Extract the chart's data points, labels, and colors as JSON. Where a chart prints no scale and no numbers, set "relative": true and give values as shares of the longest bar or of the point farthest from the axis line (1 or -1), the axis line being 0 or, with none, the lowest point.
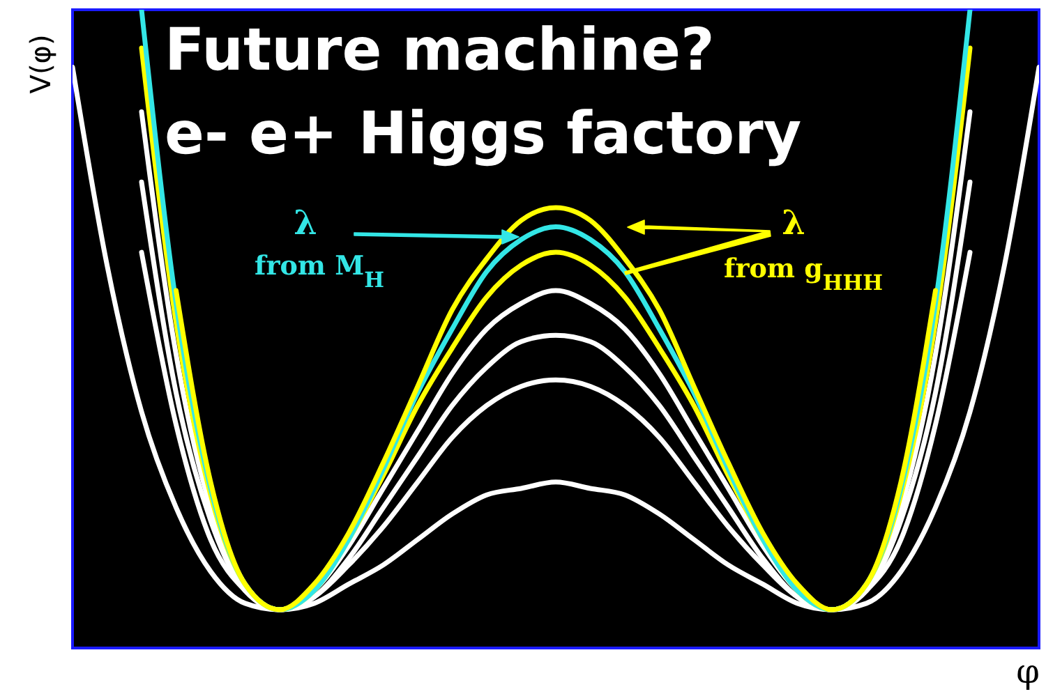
{
  "chart_data": {
    "type": "line",
    "relative": true,
    "title": "Future machine?",
    "subtitle": "e- e+ Higgs factory",
    "xlabel": "φ",
    "ylabel": "V(φ)",
    "categories": [
      null,
      null,
      null,
      null,
      null,
      null,
      null,
      null,
      null,
      null,
      null,
      null,
      null,
      null,
      null,
      null,
      null,
      null,
      null,
      null,
      null,
      null,
      null,
      null,
      null,
      null,
      null,
      null,
      null
    ],
    "series": [
      {
        "color": "#ffffff",
        "values": [
          0.91,
          0.6,
          0.37,
          0.22,
          0.12,
          0.07,
          0.06,
          0.07,
          0.1,
          0.13,
          0.17,
          0.21,
          0.24,
          0.25,
          0.26,
          0.25,
          0.24,
          0.21,
          0.17,
          0.13,
          0.1,
          0.07,
          0.06,
          0.07,
          0.12,
          0.22,
          0.37,
          0.6,
          0.91
        ]
      },
      {
        "color": "#ffffff",
        "values": [
          null,
          null,
          0.62,
          0.35,
          0.17,
          0.09,
          0.06,
          0.08,
          0.13,
          0.19,
          0.26,
          0.33,
          0.38,
          0.41,
          0.42,
          0.41,
          0.38,
          0.33,
          0.26,
          0.19,
          0.13,
          0.08,
          0.06,
          0.09,
          0.17,
          0.35,
          0.62,
          null,
          null
        ]
      },
      {
        "color": "#ffffff",
        "values": [
          null,
          null,
          0.73,
          0.4,
          0.2,
          0.09,
          0.06,
          0.08,
          0.14,
          0.22,
          0.3,
          0.38,
          0.44,
          0.48,
          0.49,
          0.48,
          0.44,
          0.38,
          0.3,
          0.22,
          0.14,
          0.08,
          0.06,
          0.09,
          0.2,
          0.4,
          0.73,
          null,
          null
        ]
      },
      {
        "color": "#ffffff",
        "values": [
          null,
          null,
          0.84,
          0.46,
          0.22,
          0.1,
          0.06,
          0.09,
          0.16,
          0.25,
          0.34,
          0.43,
          0.5,
          0.54,
          0.56,
          0.54,
          0.5,
          0.43,
          0.34,
          0.25,
          0.16,
          0.09,
          0.06,
          0.1,
          0.22,
          0.46,
          0.84,
          null,
          null
        ]
      },
      {
        "color": "#ffff00",
        "values": [
          null,
          null,
          0.94,
          0.51,
          0.24,
          0.1,
          0.06,
          0.09,
          0.17,
          0.27,
          0.38,
          0.47,
          0.55,
          0.6,
          0.62,
          0.6,
          0.55,
          0.47,
          0.38,
          0.27,
          0.17,
          0.09,
          0.06,
          0.1,
          0.24,
          0.51,
          0.94,
          null,
          null
        ]
      },
      {
        "color": "#33e6e6",
        "values": [
          null,
          null,
          1.0,
          0.54,
          0.25,
          0.1,
          0.06,
          0.09,
          0.17,
          0.28,
          0.4,
          0.5,
          0.59,
          0.64,
          0.66,
          0.64,
          0.59,
          0.5,
          0.4,
          0.28,
          0.17,
          0.09,
          0.06,
          0.1,
          0.25,
          0.54,
          1.0,
          null,
          null
        ]
      },
      {
        "color": "#ffff00",
        "values": [
          null,
          null,
          null,
          0.56,
          0.26,
          0.1,
          0.06,
          0.1,
          0.18,
          0.29,
          0.41,
          0.53,
          0.61,
          0.67,
          0.69,
          0.67,
          0.61,
          0.53,
          0.41,
          0.29,
          0.18,
          0.1,
          0.06,
          0.1,
          0.26,
          0.56,
          null,
          null,
          null
        ]
      }
    ],
    "annotations": [
      "λ",
      "from M$_{H}$",
      "λ",
      "from g$_{HHH}$"
    ]
  }
}
